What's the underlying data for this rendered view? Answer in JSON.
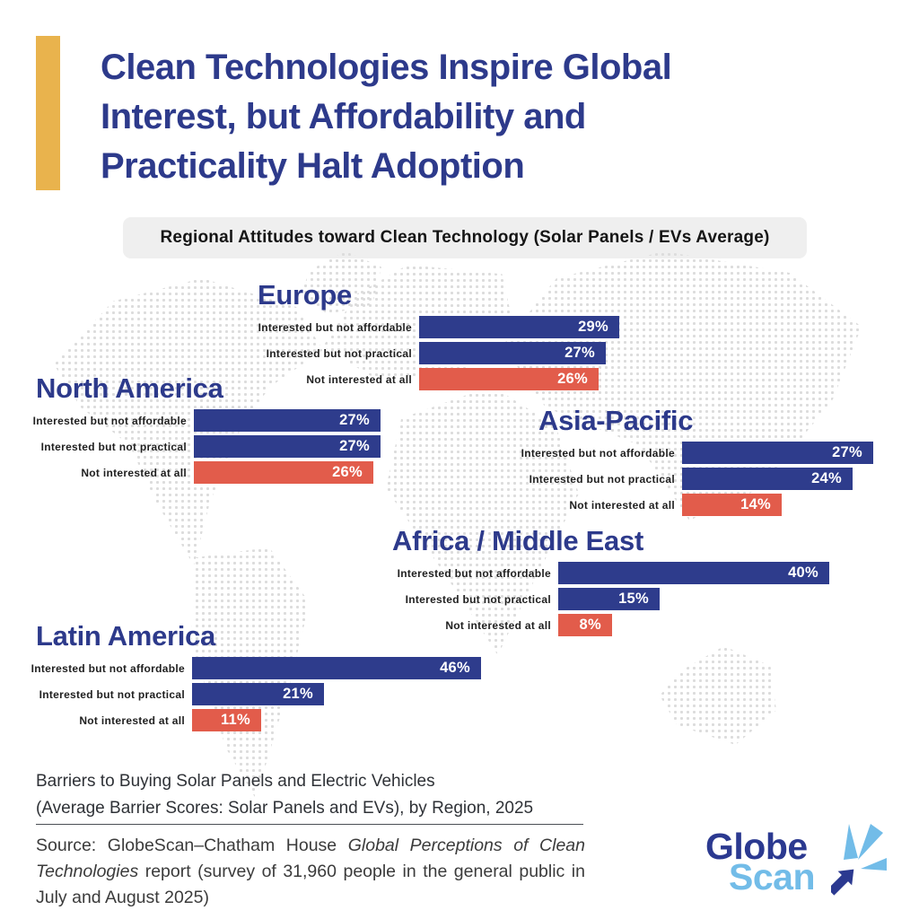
{
  "colors": {
    "navy": "#2E3C8C",
    "red": "#E25C4B",
    "gold": "#E9B34D",
    "title": "#2D3A8B",
    "lightblue": "#72BCE8",
    "logonavy": "#2B3990",
    "dot": "#DCDCDC",
    "pillbg": "#EFEFEF"
  },
  "header": {
    "title_lines": [
      "Clean Technologies Inspire Global",
      "Interest, but Affordability and",
      "Practicality Halt Adoption"
    ],
    "subtitle": "Regional Attitudes toward Clean Technology (Solar Panels / EVs Average)"
  },
  "chart_data": {
    "type": "bar",
    "orientation": "horizontal",
    "value_unit": "%",
    "title": "Regional Attitudes toward Clean Technology (Solar Panels / EVs Average)",
    "categories": [
      "Interested but not affordable",
      "Interested but not practical",
      "Not interested at all"
    ],
    "bar_colors": {
      "interested_but_not_affordable": "#2E3C8C",
      "interested_but_not_practical": "#2E3C8C",
      "not_interested_at_all": "#E25C4B"
    },
    "regions": [
      {
        "name": "Europe",
        "bars": [
          {
            "label": "Interested but not affordable",
            "value": 29,
            "display": "29%"
          },
          {
            "label": "Interested but not practical",
            "value": 27,
            "display": "27%"
          },
          {
            "label": "Not interested at all",
            "value": 26,
            "display": "26%"
          }
        ]
      },
      {
        "name": "North America",
        "bars": [
          {
            "label": "Interested but not affordable",
            "value": 27,
            "display": "27%"
          },
          {
            "label": "Interested but not practical",
            "value": 27,
            "display": "27%"
          },
          {
            "label": "Not interested at all",
            "value": 26,
            "display": "26%"
          }
        ]
      },
      {
        "name": "Asia-Pacific",
        "bars": [
          {
            "label": "Interested but not affordable",
            "value": 27,
            "display": "27%"
          },
          {
            "label": "Interested but not practical",
            "value": 24,
            "display": "24%"
          },
          {
            "label": "Not interested at all",
            "value": 14,
            "display": "14%"
          }
        ]
      },
      {
        "name": "Africa / Middle East",
        "bars": [
          {
            "label": "Interested but not affordable",
            "value": 40,
            "display": "40%"
          },
          {
            "label": "Interested but not practical",
            "value": 15,
            "display": "15%"
          },
          {
            "label": "Not interested at all",
            "value": 8,
            "display": "8%"
          }
        ]
      },
      {
        "name": "Latin America",
        "bars": [
          {
            "label": "Interested but not affordable",
            "value": 46,
            "display": "46%"
          },
          {
            "label": "Interested but not practical",
            "value": 21,
            "display": "21%"
          },
          {
            "label": "Not interested at all",
            "value": 11,
            "display": "11%"
          }
        ]
      }
    ]
  },
  "footer": {
    "caption_line1": "Barriers to Buying Solar Panels and Electric Vehicles",
    "caption_line2": "(Average Barrier Scores: Solar Panels and EVs), by Region, 2025",
    "source_prefix": "Source: GlobeScan–Chatham House ",
    "source_italic": "Global Perceptions of Clean Technologies",
    "source_suffix": " report (survey of 31,960 people in the general public in July and August 2025)"
  },
  "logo": {
    "word_top": "Globe",
    "word_bottom": "Scan"
  }
}
